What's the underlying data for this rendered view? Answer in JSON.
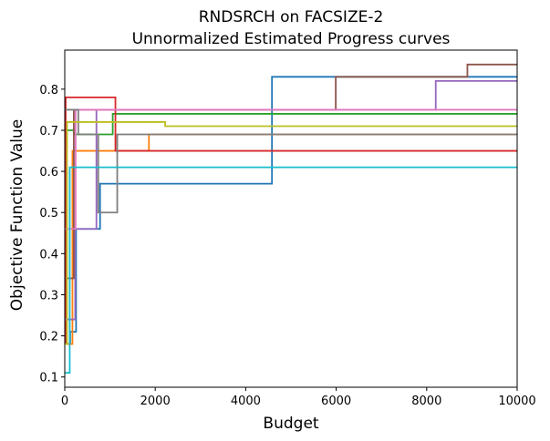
{
  "chart_data": {
    "type": "line",
    "step": true,
    "title": "RNDSRCH on FACSIZE-2",
    "subtitle": "Unnormalized Estimated Progress curves",
    "xlabel": "Budget",
    "ylabel": "Objective Function Value",
    "xlim": [
      0,
      10000
    ],
    "ylim": [
      0.075,
      0.895
    ],
    "xticks": [
      0,
      2000,
      4000,
      6000,
      8000,
      10000
    ],
    "yticks": [
      0.1,
      0.2,
      0.3,
      0.4,
      0.5,
      0.6,
      0.7,
      0.8
    ],
    "grid": false,
    "legend": "none",
    "series": [
      {
        "color": "#1f77b4",
        "x": [
          0,
          120,
          250,
          780,
          4580,
          10000
        ],
        "y": [
          0.18,
          0.21,
          0.46,
          0.57,
          0.83,
          0.83
        ]
      },
      {
        "color": "#ff7f0e",
        "x": [
          0,
          170,
          1860,
          10000
        ],
        "y": [
          0.18,
          0.65,
          0.69,
          0.69
        ]
      },
      {
        "color": "#2ca02c",
        "x": [
          0,
          40,
          200,
          1060,
          10000
        ],
        "y": [
          0.18,
          0.7,
          0.69,
          0.74,
          0.74
        ]
      },
      {
        "color": "#d62728",
        "x": [
          0,
          20,
          1120,
          10000
        ],
        "y": [
          0.18,
          0.78,
          0.65,
          0.65
        ]
      },
      {
        "color": "#9467bd",
        "x": [
          0,
          230,
          700,
          8200,
          10000
        ],
        "y": [
          0.24,
          0.46,
          0.75,
          0.82,
          0.82
        ]
      },
      {
        "color": "#8c564b",
        "x": [
          0,
          200,
          5990,
          8900,
          10000
        ],
        "y": [
          0.34,
          0.75,
          0.83,
          0.86,
          0.86
        ]
      },
      {
        "color": "#e377c2",
        "x": [
          0,
          240,
          10000
        ],
        "y": [
          0.46,
          0.75,
          0.75
        ]
      },
      {
        "color": "#7f7f7f",
        "x": [
          0,
          300,
          740,
          1160,
          10000
        ],
        "y": [
          0.75,
          0.69,
          0.5,
          0.69,
          0.69
        ]
      },
      {
        "color": "#bcbd22",
        "x": [
          0,
          50,
          2220,
          10000
        ],
        "y": [
          0.18,
          0.72,
          0.71,
          0.71
        ]
      },
      {
        "color": "#17becf",
        "x": [
          0,
          110,
          10000
        ],
        "y": [
          0.11,
          0.61,
          0.61
        ]
      }
    ]
  }
}
